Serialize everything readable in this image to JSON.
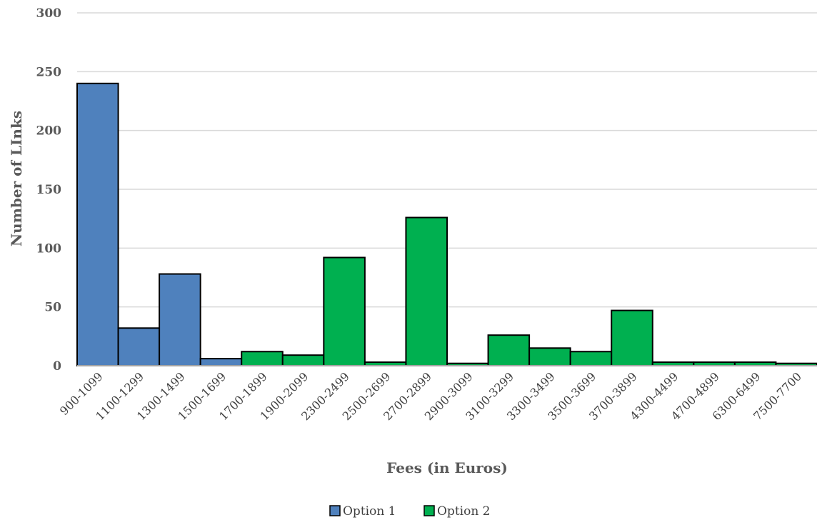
{
  "chart_data": {
    "type": "bar",
    "title": "",
    "xlabel": "Fees (in Euros)",
    "ylabel": "Number of LInks",
    "ylim": [
      0,
      300
    ],
    "yticks": [
      0,
      50,
      100,
      150,
      200,
      250,
      300
    ],
    "grid": true,
    "legend_position": "bottom",
    "categories": [
      "900-1099",
      "1100-1299",
      "1300-1499",
      "1500-1699",
      "1700-1899",
      "1900-2099",
      "2300-2499",
      "2500-2699",
      "2700-2899",
      "2900-3099",
      "3100-3299",
      "3300-3499",
      "3500-3699",
      "3700-3899",
      "4300-4499",
      "4700-4899",
      "6300-6499",
      "7500-7700"
    ],
    "values": [
      240,
      32,
      78,
      6,
      12,
      9,
      92,
      3,
      126,
      2,
      26,
      15,
      12,
      47,
      3,
      3,
      3,
      2
    ],
    "series": [
      {
        "name": "Option 1",
        "color": "#4f81bd",
        "categories": [
          "900-1099",
          "1100-1299",
          "1300-1499",
          "1500-1699"
        ]
      },
      {
        "name": "Option 2",
        "color": "#00b050",
        "categories": [
          "1700-1899",
          "1900-2099",
          "2300-2499",
          "2500-2699",
          "2700-2899",
          "2900-3099",
          "3100-3299",
          "3300-3499",
          "3500-3699",
          "3700-3899",
          "4300-4499",
          "4700-4899",
          "6300-6499",
          "7500-7700"
        ]
      }
    ]
  }
}
